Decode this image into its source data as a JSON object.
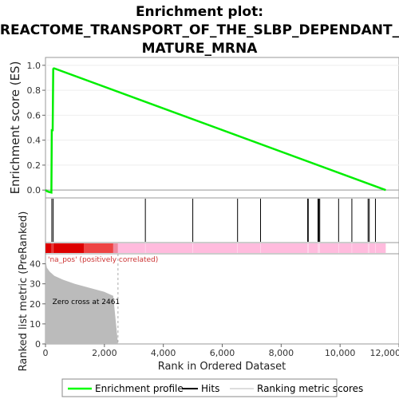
{
  "chart_data": {
    "type": "line",
    "title_lines": [
      "Enrichment plot:",
      "REACTOME_TRANSPORT_OF_THE_SLBP_DEPENDANT_",
      "MATURE_MRNA"
    ],
    "xlabel": "Rank in Ordered Dataset",
    "ylabel_top": "Enrichment score (ES)",
    "ylabel_bottom": "Ranked list metric (PreRanked)",
    "xlim": [
      0,
      12000
    ],
    "x_ticks": [
      0,
      2000,
      4000,
      6000,
      8000,
      10000,
      12000
    ],
    "x_tick_labels": [
      "0",
      "2,000",
      "4,000",
      "6,000",
      "8,000",
      "10,000",
      "12,000"
    ],
    "es_ylim": [
      -0.05,
      1.05
    ],
    "es_y_ticks": [
      0.0,
      0.2,
      0.4,
      0.6,
      0.8,
      1.0
    ],
    "es_y_tick_labels": [
      "0.0",
      "0.2",
      "0.4",
      "0.6",
      "0.8",
      "1.0"
    ],
    "metric_ylim": [
      0,
      45
    ],
    "metric_y_ticks": [
      0,
      10,
      20,
      30,
      40
    ],
    "metric_y_tick_labels": [
      "0",
      "10",
      "20",
      "30",
      "40"
    ],
    "es_curve": {
      "x": [
        0,
        60,
        120,
        200,
        215,
        230,
        245,
        262,
        280,
        300,
        11550
      ],
      "y": [
        0.0,
        -0.01,
        -0.015,
        -0.02,
        0.48,
        0.48,
        0.48,
        0.97,
        0.975,
        0.975,
        0.0
      ]
    },
    "hits": [
      215,
      262,
      3390,
      5000,
      6520,
      7300,
      8900,
      8920,
      9250,
      9280,
      9310,
      9950,
      10400,
      10950,
      10990,
      11200
    ],
    "metric_curve": {
      "x": [
        0,
        50,
        150,
        300,
        600,
        1000,
        1500,
        2000,
        2300,
        2461
      ],
      "y": [
        42,
        38,
        36,
        34,
        32,
        30,
        28,
        26,
        24,
        0
      ]
    },
    "zero_cross_rank": 2461,
    "zero_cross_label": "Zero cross at 2461",
    "pos_label": "'na_pos' (positively correlated)",
    "legend": [
      {
        "label": "Enrichment profile",
        "color": "#00ff00"
      },
      {
        "label": "Hits",
        "color": "#000000"
      },
      {
        "label": "Ranking metric scores",
        "color": "#dddddd"
      }
    ],
    "colors": {
      "es_line": "#00ee00",
      "bar_red": "#dd0000",
      "bar_red_light": "#ee4444",
      "bar_pink": "#ffbbdd",
      "metric_fill": "#bbbbbb",
      "pos_label": "#cc3333"
    }
  }
}
